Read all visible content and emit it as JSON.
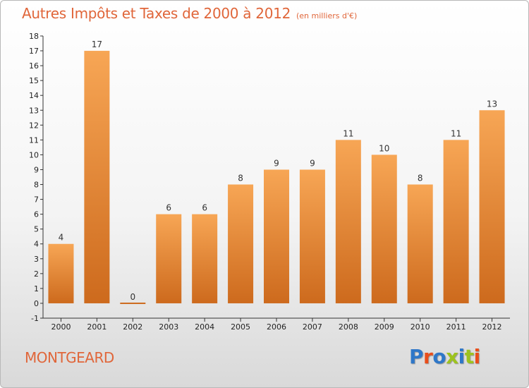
{
  "title": "Autres Impôts et Taxes de 2000 à 2012",
  "subtitle": "(en milliers d'€)",
  "commune": "MONTGEARD",
  "logo_text": "Proxiti",
  "colors": {
    "title": "#e0663a",
    "bar_light": "#f7a655",
    "bar_dark": "#cd6a1d",
    "axis": "#333333",
    "logo": [
      "#2e77c8",
      "#e94e1b",
      "#2e77c8",
      "#9dc31e",
      "#2e77c8",
      "#9dc31e",
      "#e94e1b"
    ]
  },
  "chart_data": {
    "type": "bar",
    "title": "Autres Impôts et Taxes de 2000 à 2012",
    "subtitle": "(en milliers d'€)",
    "xlabel": "",
    "ylabel": "",
    "categories": [
      "2000",
      "2001",
      "2002",
      "2003",
      "2004",
      "2005",
      "2006",
      "2007",
      "2008",
      "2009",
      "2010",
      "2011",
      "2012"
    ],
    "values": [
      4,
      17,
      0,
      6,
      6,
      8,
      9,
      9,
      11,
      10,
      8,
      11,
      13
    ],
    "ylim": [
      -1,
      18
    ],
    "yticks": [
      -1,
      0,
      1,
      2,
      3,
      4,
      5,
      6,
      7,
      8,
      9,
      10,
      11,
      12,
      13,
      14,
      15,
      16,
      17,
      18
    ],
    "grid": false,
    "data_labels": true
  }
}
